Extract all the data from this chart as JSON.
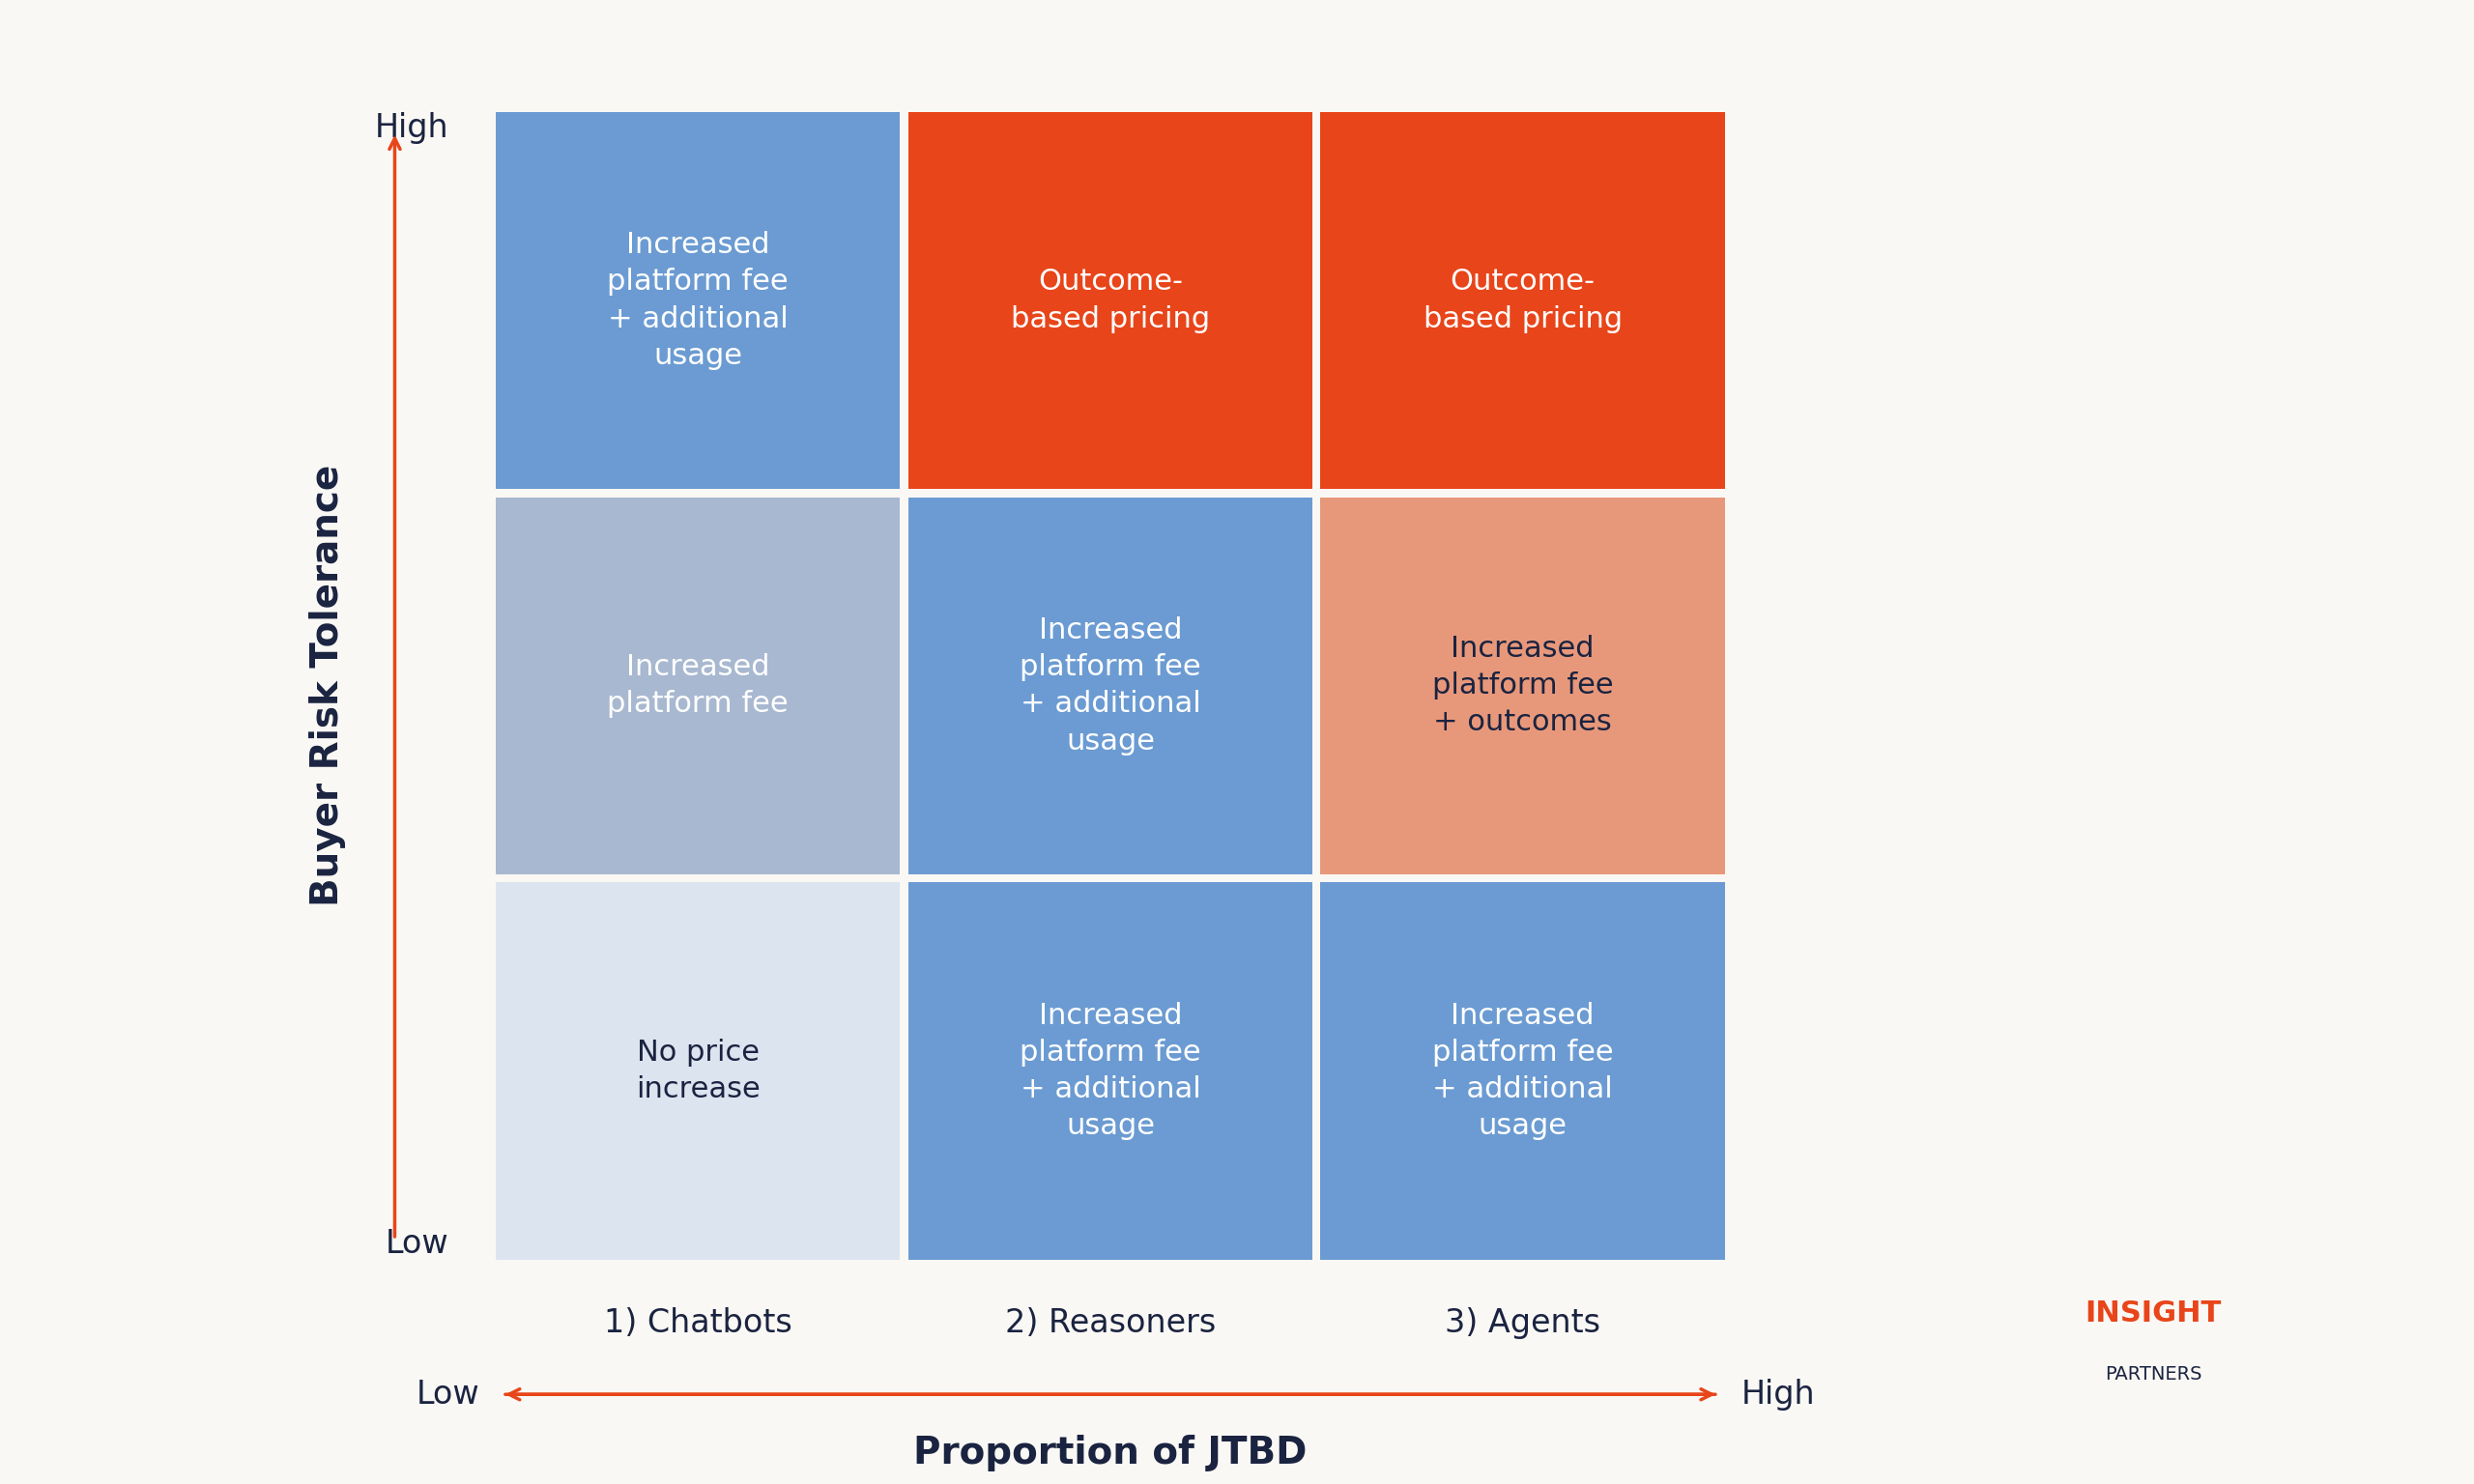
{
  "background_color": "#faf8f4",
  "grid_colors": {
    "top_left": "#6b9bd2",
    "top_mid": "#e8451a",
    "top_right": "#e8451a",
    "mid_left": "#a8b8d0",
    "mid_mid": "#6b9bd2",
    "mid_right": "#e8987a",
    "bot_left": "#dce4ef",
    "bot_mid": "#6b9bd2",
    "bot_right": "#6b9bd2"
  },
  "cell_texts": {
    "top_left": "Increased\nplatform fee\n+ additional\nusage",
    "top_mid": "Outcome-\nbased pricing",
    "top_right": "Outcome-\nbased pricing",
    "mid_left": "Increased\nplatform fee",
    "mid_mid": "Increased\nplatform fee\n+ additional\nusage",
    "mid_right": "Increased\nplatform fee\n+ outcomes",
    "bot_left": "No price\nincrease",
    "bot_mid": "Increased\nplatform fee\n+ additional\nusage",
    "bot_right": "Increased\nplatform fee\n+ additional\nusage"
  },
  "cell_text_colors": {
    "top_left": "#ffffff",
    "top_mid": "#ffffff",
    "top_right": "#ffffff",
    "mid_left": "#ffffff",
    "mid_mid": "#ffffff",
    "mid_right": "#1a2340",
    "bot_left": "#1a2340",
    "bot_mid": "#ffffff",
    "bot_right": "#ffffff"
  },
  "col_labels": [
    "1) Chatbots",
    "2) Reasoners",
    "3) Agents"
  ],
  "col_label_color": "#1a2340",
  "row_high_label": "High",
  "row_low_label": "Low",
  "row_label_color": "#1a2340",
  "y_axis_label": "Buyer Risk Tolerance",
  "y_axis_label_color": "#1a2340",
  "x_axis_label": "Proportion of JTBD",
  "x_axis_label_color": "#1a2340",
  "x_low_label": "Low",
  "x_high_label": "High",
  "arrow_color": "#e8451a",
  "logo_text1": "INSIGHT",
  "logo_text2": "PARTNERS",
  "logo_color": "#e8451a",
  "logo_partner_color": "#1a2340",
  "cell_font_size": 22,
  "label_font_size": 24,
  "axis_label_font_size": 28,
  "logo_font_size1": 22,
  "logo_font_size2": 14
}
